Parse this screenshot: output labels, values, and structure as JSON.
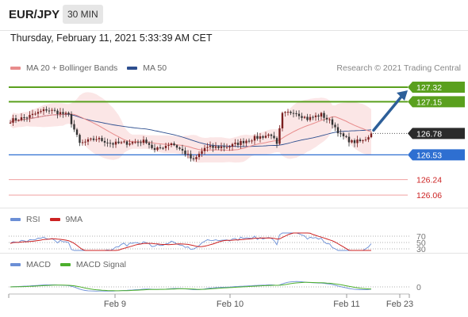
{
  "header": {
    "symbol": "EUR/JPY",
    "timeframe": "30 MIN",
    "datetime": "Thursday, February 11, 2021 5:33:39 AM CET"
  },
  "legend": {
    "ma20": "MA 20 + Bollinger Bands",
    "ma50": "MA 50",
    "credit": "Research © 2021 Trading Central"
  },
  "rsi_legend": {
    "rsi": "RSI",
    "ma": "9MA"
  },
  "macd_legend": {
    "macd": "MACD",
    "signal": "MACD Signal"
  },
  "colors": {
    "bull": "#7a1f1f",
    "bear": "#333333",
    "ma20": "#e88c8c",
    "ma50": "#2d4e8f",
    "band_fill": "#fbe3e3",
    "resistance": "#5aa01e",
    "support": "#2e6fd1",
    "target_red": "#cc2222",
    "arrow": "#2d5f99",
    "rsi": "#6b8fd6",
    "rsi_ma": "#cc2222",
    "macd": "#6b8fd6",
    "signal": "#4caf2c"
  },
  "chart_data": [
    {
      "type": "candlestick",
      "title": "EUR/JPY 30 MIN",
      "ylim": [
        125.95,
        127.45
      ],
      "x_tick_labels": [
        "Feb 9",
        "Feb 10",
        "Feb 11",
        "Feb 23"
      ],
      "last_price": 126.78,
      "levels": [
        {
          "value": 127.32,
          "label": "127.32",
          "kind": "resistance"
        },
        {
          "value": 127.15,
          "label": "127.15",
          "kind": "resistance"
        },
        {
          "value": 126.53,
          "label": "126.53",
          "kind": "support"
        },
        {
          "value": 126.24,
          "label": "126.24",
          "kind": "target"
        },
        {
          "value": 126.06,
          "label": "126.06",
          "kind": "target"
        }
      ],
      "close_anchors": [
        [
          0,
          126.93
        ],
        [
          6,
          126.97
        ],
        [
          13,
          127.06
        ],
        [
          18,
          127.02
        ],
        [
          21,
          126.99
        ],
        [
          25,
          126.66
        ],
        [
          31,
          126.72
        ],
        [
          37,
          126.66
        ],
        [
          42,
          126.67
        ],
        [
          49,
          126.69
        ],
        [
          52,
          126.58
        ],
        [
          58,
          126.67
        ],
        [
          63,
          126.55
        ],
        [
          66,
          126.46
        ],
        [
          70,
          126.61
        ],
        [
          79,
          126.63
        ],
        [
          86,
          126.71
        ],
        [
          94,
          126.77
        ],
        [
          96,
          126.64
        ],
        [
          98,
          127.0
        ],
        [
          102,
          127.04
        ],
        [
          107,
          126.95
        ],
        [
          112,
          127.0
        ],
        [
          116,
          126.9
        ],
        [
          119,
          126.76
        ],
        [
          123,
          126.68
        ],
        [
          127,
          126.69
        ],
        [
          130,
          126.78
        ]
      ],
      "series": [
        {
          "name": "MA 20 + Bollinger Bands"
        },
        {
          "name": "MA 50"
        }
      ]
    },
    {
      "type": "line",
      "title": "RSI",
      "yticks": [
        70,
        50,
        30
      ],
      "series": [
        {
          "name": "RSI"
        },
        {
          "name": "9MA"
        }
      ]
    },
    {
      "type": "line",
      "title": "MACD",
      "yticks": [
        0
      ],
      "series": [
        {
          "name": "MACD"
        },
        {
          "name": "MACD Signal"
        }
      ]
    }
  ]
}
